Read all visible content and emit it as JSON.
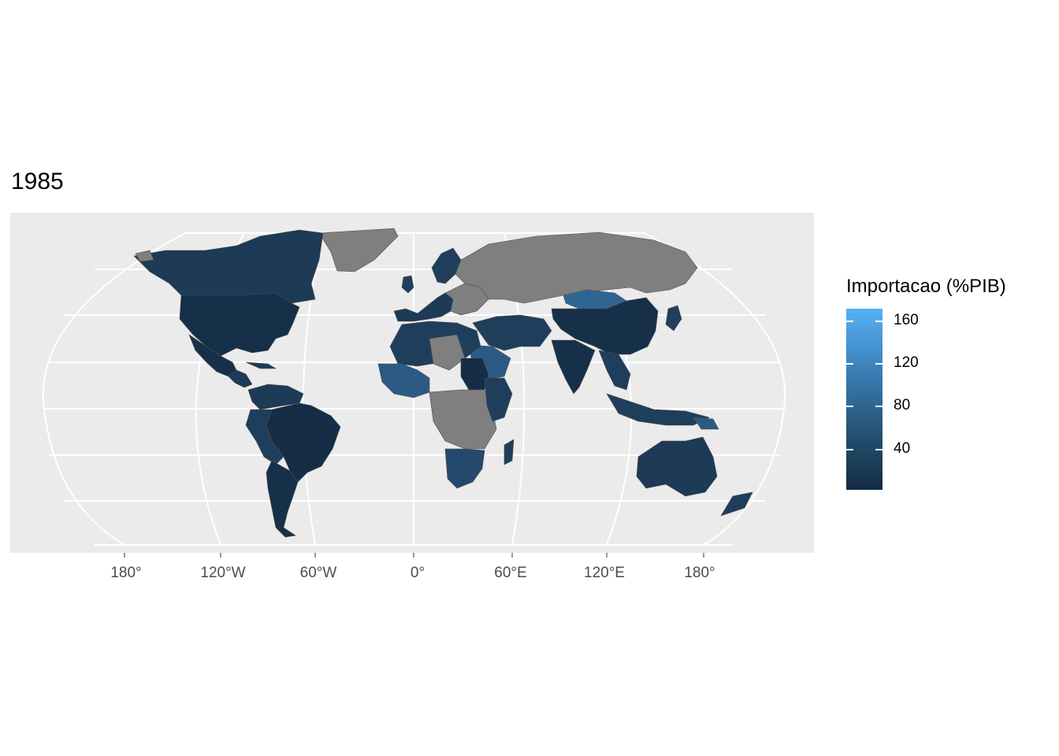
{
  "title": "1985",
  "legend": {
    "title": "Importacao (%PIB)",
    "ticks": [
      {
        "label": "160",
        "value": 160
      },
      {
        "label": "120",
        "value": 120
      },
      {
        "label": "80",
        "value": 80
      },
      {
        "label": "40",
        "value": 40
      }
    ],
    "range": [
      2,
      172
    ],
    "colors": {
      "low": "#132b43",
      "high": "#56b1f7",
      "missing": "#7f7f7f"
    }
  },
  "axis": {
    "x_ticks": [
      "180°",
      "120°W",
      "60°W",
      "0°",
      "60°E",
      "120°E",
      "180°"
    ]
  },
  "colors": {
    "panel": "#ebebeb",
    "grid": "#ffffff",
    "border": "#4d4d4d"
  }
}
